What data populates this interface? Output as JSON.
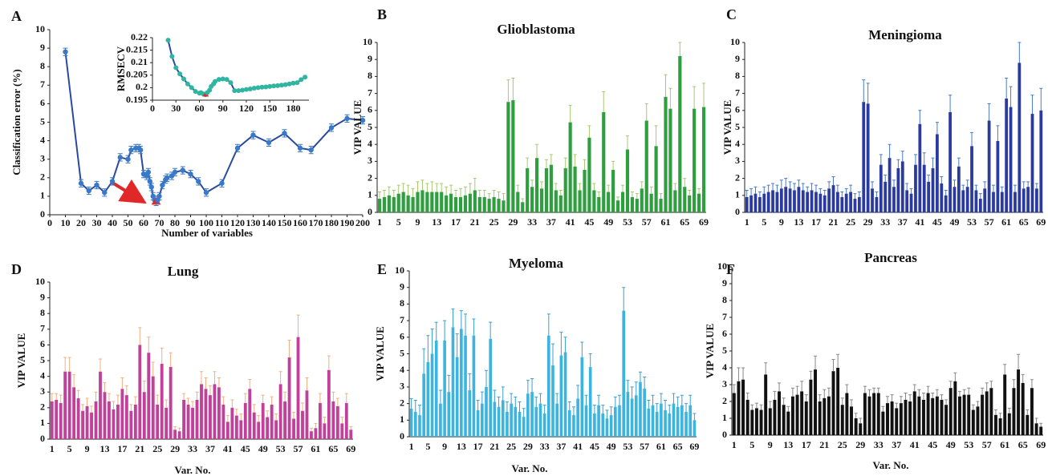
{
  "chart_data": [
    {
      "type": "line",
      "label": "A",
      "ylabel": "Classification error (%)",
      "xlabel": "Number of variables",
      "x": [
        10,
        20,
        25,
        30,
        35,
        40,
        45,
        50,
        52,
        55,
        57,
        58,
        60,
        62,
        63,
        64,
        65,
        66,
        67,
        68,
        69,
        70,
        72,
        74,
        75,
        78,
        80,
        85,
        90,
        95,
        100,
        110,
        120,
        130,
        140,
        150,
        160,
        167,
        180,
        190,
        200
      ],
      "values": [
        8.8,
        1.7,
        1.3,
        1.6,
        1.2,
        1.8,
        3.1,
        3.0,
        3.5,
        3.6,
        3.6,
        3.5,
        2.2,
        2.1,
        2.3,
        1.8,
        1.5,
        1.0,
        0.8,
        0.7,
        0.8,
        1.0,
        1.6,
        1.9,
        2.0,
        2.1,
        2.3,
        2.4,
        2.2,
        1.8,
        1.2,
        1.7,
        3.6,
        4.3,
        3.9,
        4.4,
        3.6,
        3.5,
        4.7,
        5.2,
        5.1
      ],
      "error": 0.2,
      "color": "#2a4aa0",
      "marker_color": "#3a78c8",
      "highlight_x": 68,
      "highlight_color": "#e02828",
      "xlim": [
        0,
        200
      ],
      "ylim": [
        0,
        10
      ],
      "xticks": [
        0,
        10,
        20,
        30,
        40,
        50,
        60,
        70,
        80,
        90,
        100,
        110,
        120,
        130,
        140,
        150,
        160,
        170,
        180,
        190,
        200
      ],
      "yticks": [
        0,
        1,
        2,
        3,
        4,
        5,
        6,
        7,
        8,
        9,
        10
      ]
    },
    {
      "type": "line",
      "ylabel": "RMSECV",
      "x": [
        20,
        25,
        30,
        35,
        40,
        45,
        50,
        55,
        60,
        62,
        65,
        68,
        70,
        73,
        75,
        78,
        80,
        85,
        90,
        95,
        100,
        105,
        110,
        115,
        120,
        125,
        130,
        135,
        140,
        145,
        150,
        155,
        160,
        165,
        170,
        175,
        180,
        185,
        190,
        195
      ],
      "values": [
        0.219,
        0.2125,
        0.208,
        0.2055,
        0.2035,
        0.2015,
        0.2,
        0.1985,
        0.1978,
        0.198,
        0.1975,
        0.1972,
        0.198,
        0.199,
        0.2005,
        0.2015,
        0.2025,
        0.2033,
        0.2035,
        0.2033,
        0.202,
        0.1988,
        0.1988,
        0.199,
        0.1993,
        0.1995,
        0.1998,
        0.2,
        0.2002,
        0.2003,
        0.2005,
        0.2007,
        0.2008,
        0.201,
        0.2012,
        0.2015,
        0.2018,
        0.202,
        0.2032,
        0.2042
      ],
      "color": "#2a4aa0",
      "marker_color": "#2fb5a0",
      "highlight_x": 68,
      "highlight_color": "#e02828",
      "xlim": [
        0,
        200
      ],
      "ylim": [
        0.195,
        0.22
      ],
      "xticks": [
        0,
        30,
        60,
        90,
        120,
        150,
        180
      ],
      "yticks": [
        0.195,
        0.2,
        0.205,
        0.21,
        0.215,
        0.22
      ]
    },
    {
      "type": "bar",
      "label": "B",
      "title": "Glioblastoma",
      "ylabel": "VIP VALUE",
      "color": "#2e9e3e",
      "error_color": "#a8c870",
      "categories": [
        "1",
        null,
        null,
        null,
        "5",
        null,
        null,
        null,
        "9",
        null,
        null,
        null,
        "13",
        null,
        null,
        null,
        "17",
        null,
        null,
        null,
        "21",
        null,
        null,
        null,
        "25",
        null,
        null,
        null,
        "29",
        null,
        null,
        null,
        "33",
        null,
        null,
        null,
        "37",
        null,
        null,
        null,
        "41",
        null,
        null,
        null,
        "45",
        null,
        null,
        null,
        "49",
        null,
        null,
        null,
        "53",
        null,
        null,
        null,
        "57",
        null,
        null,
        null,
        "61",
        null,
        null,
        null,
        "65",
        null,
        null,
        null,
        "69"
      ],
      "values": [
        0.8,
        0.9,
        1.0,
        0.9,
        1.1,
        1.2,
        1.0,
        0.9,
        1.2,
        1.3,
        1.2,
        1.2,
        1.2,
        1.2,
        1.0,
        1.1,
        0.9,
        0.9,
        1.0,
        1.1,
        1.3,
        0.9,
        0.9,
        0.8,
        0.9,
        0.8,
        0.7,
        6.5,
        6.6,
        1.2,
        0.6,
        2.6,
        1.5,
        3.2,
        1.4,
        2.6,
        2.8,
        1.3,
        1.0,
        2.6,
        5.3,
        2.7,
        1.3,
        2.5,
        4.4,
        1.3,
        0.9,
        5.9,
        1.2,
        2.5,
        0.7,
        1.2,
        3.7,
        0.9,
        0.8,
        1.4,
        5.4,
        1.1,
        3.9,
        0.8,
        6.8,
        6.1,
        1.3,
        9.2,
        1.5,
        1.0,
        6.1,
        1.1,
        6.2
      ],
      "errors": [
        0.4,
        0.4,
        0.5,
        0.4,
        0.5,
        0.5,
        0.6,
        0.5,
        0.6,
        0.6,
        0.5,
        0.6,
        0.5,
        0.5,
        0.5,
        0.5,
        0.4,
        0.5,
        0.5,
        0.6,
        0.7,
        0.4,
        0.4,
        0.3,
        0.4,
        0.4,
        0.4,
        1.3,
        1.3,
        0.4,
        0.2,
        0.6,
        0.4,
        0.8,
        0.4,
        0.5,
        0.6,
        0.4,
        0.3,
        0.6,
        1.0,
        0.7,
        0.4,
        0.6,
        0.7,
        0.4,
        0.3,
        1.2,
        0.4,
        0.5,
        0.2,
        0.4,
        0.8,
        0.3,
        0.3,
        0.4,
        1.0,
        0.4,
        1.2,
        0.3,
        1.3,
        1.2,
        0.4,
        0.8,
        0.5,
        0.3,
        1.3,
        0.3,
        1.4
      ],
      "ylim": [
        0,
        10
      ],
      "yticks": [
        0,
        1,
        2,
        3,
        4,
        5,
        6,
        7,
        8,
        9,
        10
      ]
    },
    {
      "type": "bar",
      "label": "C",
      "title": "Meningioma",
      "ylabel": "VIP VALUE",
      "color": "#2b3aa0",
      "error_color": "#4a7ac8",
      "categories": [
        "1",
        null,
        null,
        null,
        "5",
        null,
        null,
        null,
        "9",
        null,
        null,
        null,
        "13",
        null,
        null,
        null,
        "17",
        null,
        null,
        null,
        "21",
        null,
        null,
        null,
        "25",
        null,
        null,
        null,
        "29",
        null,
        null,
        null,
        "33",
        null,
        null,
        null,
        "37",
        null,
        null,
        null,
        "41",
        null,
        null,
        null,
        "45",
        null,
        null,
        null,
        "49",
        null,
        null,
        null,
        "53",
        null,
        null,
        null,
        "57",
        null,
        null,
        null,
        "61",
        null,
        null,
        null,
        "65",
        null,
        null,
        null,
        "69"
      ],
      "values": [
        0.9,
        1.0,
        1.1,
        0.9,
        1.1,
        1.2,
        1.3,
        1.2,
        1.4,
        1.5,
        1.4,
        1.3,
        1.5,
        1.3,
        1.2,
        1.3,
        1.2,
        1.1,
        1.0,
        1.4,
        1.6,
        1.2,
        0.9,
        1.1,
        1.2,
        0.8,
        0.9,
        6.5,
        6.4,
        1.4,
        0.9,
        2.8,
        1.8,
        3.2,
        1.5,
        2.6,
        3.0,
        1.3,
        1.1,
        2.8,
        5.2,
        2.8,
        1.8,
        2.6,
        4.6,
        1.7,
        1.0,
        5.9,
        1.5,
        2.7,
        1.3,
        1.5,
        3.9,
        1.3,
        0.8,
        1.4,
        5.4,
        1.2,
        4.2,
        1.2,
        6.7,
        6.2,
        1.2,
        8.8,
        1.4,
        1.5,
        5.8,
        1.4,
        6.0
      ],
      "errors": [
        0.4,
        0.4,
        0.4,
        0.3,
        0.4,
        0.4,
        0.4,
        0.4,
        0.5,
        0.5,
        0.4,
        0.4,
        0.4,
        0.4,
        0.3,
        0.4,
        0.4,
        0.3,
        0.3,
        0.4,
        0.5,
        0.4,
        0.3,
        0.3,
        0.4,
        0.3,
        0.3,
        1.3,
        1.2,
        0.4,
        0.3,
        0.6,
        0.4,
        0.8,
        0.4,
        0.5,
        0.6,
        0.4,
        0.3,
        0.6,
        0.8,
        0.7,
        0.4,
        0.6,
        0.7,
        0.4,
        0.3,
        1.0,
        0.4,
        0.5,
        0.3,
        0.4,
        0.8,
        0.3,
        0.3,
        0.4,
        1.0,
        0.4,
        0.9,
        0.3,
        1.2,
        1.2,
        0.4,
        1.2,
        0.4,
        0.3,
        1.1,
        0.3,
        1.3
      ],
      "ylim": [
        0,
        10
      ],
      "yticks": [
        0,
        1,
        2,
        3,
        4,
        5,
        6,
        7,
        8,
        9,
        10
      ]
    },
    {
      "type": "bar",
      "label": "D",
      "title": "Lung",
      "ylabel": "VIP VALUE",
      "xlabel": "Var. No.",
      "color": "#c0409a",
      "error_color": "#f0b080",
      "categories": [
        "1",
        null,
        null,
        null,
        "5",
        null,
        null,
        null,
        "9",
        null,
        null,
        null,
        "13",
        null,
        null,
        null,
        "17",
        null,
        null,
        null,
        "21",
        null,
        null,
        null,
        "25",
        null,
        null,
        null,
        "29",
        null,
        null,
        null,
        "33",
        null,
        null,
        null,
        "37",
        null,
        null,
        null,
        "41",
        null,
        null,
        null,
        "45",
        null,
        null,
        null,
        "49",
        null,
        null,
        null,
        "53",
        null,
        null,
        null,
        "57",
        null,
        null,
        null,
        "61",
        null,
        null,
        null,
        "65",
        null,
        null,
        null,
        "69"
      ],
      "values": [
        2.4,
        2.5,
        2.3,
        4.3,
        4.3,
        3.3,
        2.6,
        1.8,
        2.1,
        1.7,
        2.4,
        4.3,
        3.0,
        2.4,
        1.9,
        2.2,
        3.2,
        2.8,
        1.8,
        2.2,
        6.0,
        3.0,
        5.5,
        4.0,
        2.2,
        4.8,
        2.0,
        4.6,
        0.6,
        0.5,
        2.5,
        2.2,
        2.0,
        2.5,
        3.5,
        3.2,
        2.8,
        3.5,
        3.3,
        2.2,
        1.1,
        2.0,
        1.5,
        1.2,
        2.3,
        3.2,
        1.7,
        1.1,
        2.3,
        1.4,
        2.2,
        1.2,
        3.5,
        2.4,
        5.2,
        1.3,
        6.5,
        1.8,
        3.1,
        0.5,
        0.7,
        2.3,
        1.0,
        4.4,
        2.4,
        2.1,
        1.0,
        2.3,
        0.6
      ],
      "errors": [
        0.5,
        0.4,
        0.5,
        0.9,
        0.9,
        0.8,
        0.5,
        0.4,
        0.5,
        0.4,
        0.6,
        0.8,
        0.6,
        0.5,
        0.5,
        0.6,
        0.7,
        0.6,
        0.4,
        0.5,
        1.1,
        0.7,
        1.0,
        0.9,
        0.6,
        1.0,
        0.5,
        0.9,
        0.2,
        0.2,
        0.4,
        0.4,
        0.4,
        0.5,
        0.8,
        0.7,
        0.6,
        0.8,
        0.6,
        0.5,
        0.4,
        0.5,
        0.4,
        0.4,
        0.6,
        0.6,
        0.5,
        0.4,
        0.5,
        0.4,
        0.5,
        0.4,
        0.8,
        0.6,
        1.1,
        0.4,
        1.4,
        0.5,
        0.8,
        0.2,
        0.3,
        0.6,
        0.4,
        0.9,
        0.6,
        0.5,
        0.4,
        0.6,
        0.2
      ],
      "ylim": [
        0,
        10
      ],
      "yticks": [
        0,
        1,
        2,
        3,
        4,
        5,
        6,
        7,
        8,
        9,
        10
      ]
    },
    {
      "type": "bar",
      "label": "E",
      "title": "Myeloma",
      "ylabel": "VIP VALUE",
      "xlabel": "Var. No.",
      "color": "#3cb4e0",
      "error_color": "#3aa0d0",
      "categories": [
        "1",
        null,
        null,
        null,
        "5",
        null,
        null,
        null,
        "9",
        null,
        null,
        null,
        "13",
        null,
        null,
        null,
        "17",
        null,
        null,
        null,
        "21",
        null,
        null,
        null,
        "25",
        null,
        null,
        null,
        "29",
        null,
        null,
        null,
        "33",
        null,
        null,
        null,
        "37",
        null,
        null,
        null,
        "41",
        null,
        null,
        null,
        "45",
        null,
        null,
        null,
        "49",
        null,
        null,
        null,
        "53",
        null,
        null,
        null,
        "57",
        null,
        null,
        null,
        "61",
        null,
        null,
        null,
        "65",
        null,
        null,
        null,
        "69"
      ],
      "values": [
        1.7,
        1.5,
        1.3,
        3.8,
        4.5,
        5.0,
        5.8,
        2.0,
        5.8,
        2.7,
        6.6,
        4.8,
        6.5,
        6.1,
        2.8,
        6.1,
        1.6,
        2.0,
        3.0,
        5.9,
        2.1,
        1.8,
        2.2,
        1.5,
        2.0,
        1.8,
        1.5,
        1.2,
        2.6,
        2.7,
        1.8,
        2.0,
        1.4,
        6.1,
        4.3,
        2.0,
        4.9,
        5.1,
        1.6,
        1.3,
        2.3,
        4.8,
        1.9,
        4.2,
        1.4,
        1.9,
        1.4,
        1.1,
        1.3,
        1.8,
        1.9,
        7.6,
        2.7,
        2.3,
        2.5,
        3.3,
        2.9,
        1.7,
        1.9,
        1.5,
        2.0,
        1.6,
        1.4,
        2.0,
        1.8,
        1.9,
        1.5,
        1.9,
        1.0
      ],
      "errors": [
        0.6,
        0.7,
        0.6,
        1.5,
        1.6,
        1.5,
        1.1,
        0.8,
        1.2,
        1.0,
        1.1,
        1.4,
        1.1,
        1.3,
        1.0,
        1.0,
        0.6,
        0.7,
        1.0,
        1.0,
        0.7,
        0.6,
        0.8,
        0.6,
        0.6,
        0.6,
        0.6,
        0.5,
        0.8,
        0.8,
        0.6,
        0.6,
        0.5,
        1.3,
        1.3,
        0.6,
        1.4,
        0.9,
        0.5,
        0.5,
        0.8,
        0.9,
        0.6,
        0.8,
        0.5,
        0.6,
        0.5,
        0.5,
        0.5,
        0.6,
        0.6,
        1.4,
        0.7,
        0.7,
        0.8,
        0.6,
        0.7,
        0.5,
        0.6,
        0.5,
        0.6,
        0.6,
        0.5,
        0.6,
        0.6,
        0.6,
        0.5,
        0.6,
        0.4
      ],
      "ylim": [
        0,
        10
      ],
      "yticks": [
        0,
        1,
        2,
        3,
        4,
        5,
        6,
        7,
        8,
        9,
        10
      ]
    },
    {
      "type": "bar",
      "label": "F",
      "title": "Pancreas",
      "ylabel": "VIP VALUE",
      "xlabel": "Var. No.",
      "color": "#111111",
      "error_color": "#888888",
      "categories": [
        "1",
        null,
        null,
        null,
        "5",
        null,
        null,
        null,
        "9",
        null,
        null,
        null,
        "13",
        null,
        null,
        null,
        "17",
        null,
        null,
        null,
        "21",
        null,
        null,
        null,
        "25",
        null,
        null,
        null,
        "29",
        null,
        null,
        null,
        "33",
        null,
        null,
        null,
        "37",
        null,
        null,
        null,
        "41",
        null,
        null,
        null,
        "45",
        null,
        null,
        null,
        "49",
        null,
        null,
        null,
        "53",
        null,
        null,
        null,
        "57",
        null,
        null,
        null,
        "61",
        null,
        null,
        null,
        "65",
        null,
        null,
        null,
        "69"
      ],
      "values": [
        2.5,
        3.2,
        3.3,
        2.1,
        1.5,
        1.6,
        1.5,
        3.6,
        1.6,
        2.1,
        2.6,
        1.8,
        1.4,
        2.3,
        2.4,
        2.6,
        2.0,
        3.3,
        3.9,
        2.0,
        2.2,
        2.3,
        3.8,
        4.0,
        1.8,
        2.5,
        1.7,
        1.0,
        0.7,
        2.5,
        2.3,
        2.5,
        2.5,
        1.4,
        1.9,
        2.0,
        1.6,
        1.9,
        2.1,
        2.0,
        2.6,
        2.3,
        2.1,
        2.5,
        2.2,
        2.3,
        2.1,
        1.8,
        2.8,
        3.2,
        2.3,
        2.4,
        2.4,
        1.5,
        1.7,
        2.4,
        2.6,
        2.8,
        1.2,
        1.0,
        3.6,
        1.3,
        2.8,
        3.9,
        3.1,
        1.2,
        2.8,
        0.7,
        0.5
      ],
      "errors": [
        0.5,
        0.8,
        0.7,
        0.4,
        0.3,
        0.3,
        0.3,
        0.7,
        0.4,
        0.5,
        0.5,
        0.4,
        0.3,
        0.5,
        0.5,
        0.6,
        0.4,
        0.5,
        0.8,
        0.4,
        0.5,
        0.5,
        0.7,
        0.8,
        0.4,
        0.5,
        0.4,
        0.3,
        0.3,
        0.4,
        0.4,
        0.3,
        0.3,
        0.3,
        0.4,
        0.4,
        0.3,
        0.4,
        0.4,
        0.4,
        0.4,
        0.4,
        0.4,
        0.4,
        0.3,
        0.4,
        0.3,
        0.3,
        0.4,
        0.5,
        0.3,
        0.3,
        0.4,
        0.3,
        0.3,
        0.4,
        0.5,
        0.4,
        0.3,
        0.3,
        0.6,
        0.3,
        0.5,
        0.9,
        0.5,
        0.3,
        0.5,
        0.3,
        0.2
      ],
      "ylim": [
        0,
        10
      ],
      "yticks": [
        0,
        1,
        2,
        3,
        4,
        5,
        6,
        7,
        8,
        9,
        10
      ]
    }
  ]
}
